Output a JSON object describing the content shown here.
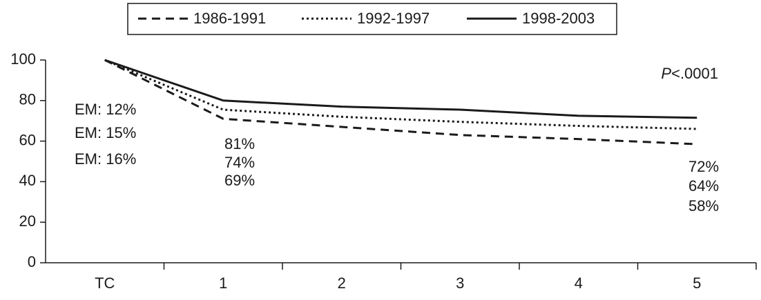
{
  "chart_data": {
    "type": "line",
    "categories": [
      "TC",
      "1",
      "2",
      "3",
      "4",
      "5"
    ],
    "series": [
      {
        "name": "1986-1991",
        "color": "#1a1a1a",
        "style": "dashed",
        "values": [
          100,
          71,
          67,
          63,
          61,
          58.5
        ]
      },
      {
        "name": "1992-1997",
        "color": "#1a1a1a",
        "style": "dotted",
        "values": [
          100,
          75.5,
          72,
          69.5,
          67.5,
          66
        ]
      },
      {
        "name": "1998-2003",
        "color": "#1a1a1a",
        "style": "solid",
        "values": [
          100,
          80,
          77,
          75.5,
          72.5,
          71.5
        ]
      }
    ],
    "ylim": [
      0,
      100
    ],
    "yticks": [
      0,
      20,
      40,
      60,
      80,
      100
    ],
    "grid": false,
    "annotations": [
      [
        "EM: 12%",
        "EM: 15%",
        "EM: 16%"
      ],
      [
        "81%",
        "74%",
        "69%"
      ],
      [
        "72%",
        "64%",
        "58%"
      ]
    ],
    "p_value": {
      "symbol": "P",
      "text": "<.0001"
    }
  }
}
